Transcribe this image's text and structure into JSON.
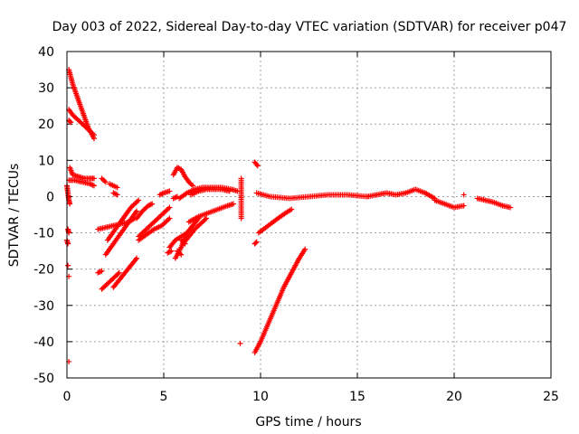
{
  "chart_data": {
    "type": "scatter",
    "title": "Day 003 of 2022, Sidereal Day-to-day VTEC variation (SDTVAR) for receiver p047",
    "xlabel": "GPS time / hours",
    "ylabel": "SDTVAR / TECUs",
    "xlim": [
      0,
      25
    ],
    "ylim": [
      -50,
      40
    ],
    "xticks": [
      0,
      5,
      10,
      15,
      20,
      25
    ],
    "yticks": [
      -50,
      -40,
      -30,
      -20,
      -10,
      0,
      10,
      20,
      30,
      40
    ],
    "xtick_labels": [
      "0",
      "5",
      "10",
      "15",
      "20",
      "25"
    ],
    "ytick_labels": [
      "-50",
      "-40",
      "-30",
      "-20",
      "-10",
      "0",
      "10",
      "20",
      "30",
      "40"
    ],
    "grid": true,
    "marker": "plus",
    "color": "#ff0000",
    "series": [
      {
        "name": "p047",
        "segments": [
          {
            "x": [
              0.1,
              0.3,
              0.5,
              0.7,
              0.9,
              1.1,
              1.4
            ],
            "y": [
              35,
              31,
              28,
              25,
              22,
              19,
              16
            ]
          },
          {
            "x": [
              0.1,
              0.3,
              0.6,
              0.9,
              1.2,
              1.4
            ],
            "y": [
              24,
              22.5,
              21,
              19.5,
              18,
              17
            ]
          },
          {
            "x": [
              0.1,
              0.2
            ],
            "y": [
              21,
              20.5
            ]
          },
          {
            "x": [
              0.15,
              0.3,
              0.6,
              0.9,
              1.2,
              1.4
            ],
            "y": [
              8,
              6,
              5.5,
              5,
              5,
              5
            ]
          },
          {
            "x": [
              0.1,
              0.4,
              0.8,
              1.2,
              1.4
            ],
            "y": [
              4.5,
              4.5,
              4,
              3.5,
              3
            ]
          },
          {
            "x": [
              1.8,
              2.0
            ],
            "y": [
              5,
              4
            ]
          },
          {
            "x": [
              2.2,
              2.6
            ],
            "y": [
              3.5,
              2.5
            ]
          },
          {
            "x": [
              2.4,
              2.6
            ],
            "y": [
              1,
              0.5
            ]
          },
          {
            "x": [
              0,
              0.05,
              0.1,
              0.15
            ],
            "y": [
              3,
              1,
              -1,
              -2
            ]
          },
          {
            "x": [
              1.6,
              2.0,
              2.4,
              2.8,
              3.2,
              3.5
            ],
            "y": [
              -9,
              -8.5,
              -8,
              -7.5,
              -7,
              -6
            ]
          },
          {
            "x": [
              2.1,
              2.5,
              2.9,
              3.3,
              3.7
            ],
            "y": [
              -12,
              -9,
              -6,
              -3,
              -1
            ]
          },
          {
            "x": [
              2.0,
              2.4,
              2.8,
              3.2,
              3.6
            ],
            "y": [
              -16,
              -13,
              -10,
              -7,
              -4
            ]
          },
          {
            "x": [
              1.6,
              1.8
            ],
            "y": [
              -21,
              -20.5
            ]
          },
          {
            "x": [
              1.8,
              2.1,
              2.4,
              2.7
            ],
            "y": [
              -25.5,
              -24,
              -22.5,
              -21
            ]
          },
          {
            "x": [
              2.4,
              2.7,
              3.0,
              3.3,
              3.6
            ],
            "y": [
              -25,
              -23,
              -21,
              -19,
              -17
            ]
          },
          {
            "x": [
              3.6,
              3.9,
              4.2,
              4.4
            ],
            "y": [
              -6,
              -4,
              -2.5,
              -2
            ]
          },
          {
            "x": [
              3.7,
              4.1,
              4.5,
              4.9,
              5.3
            ],
            "y": [
              -11,
              -9,
              -7,
              -5,
              -3
            ]
          },
          {
            "x": [
              3.7,
              4.1,
              4.5,
              4.9,
              5.3
            ],
            "y": [
              -12,
              -10.5,
              -9,
              -8,
              -6
            ]
          },
          {
            "x": [
              4.8,
              5.0,
              5.3
            ],
            "y": [
              0.5,
              1,
              1.5
            ]
          },
          {
            "x": [
              5.3,
              5.6,
              5.9,
              6.2
            ],
            "y": [
              -14,
              -12,
              -11,
              -10
            ]
          },
          {
            "x": [
              5.2,
              5.4
            ],
            "y": [
              -15.5,
              -15
            ]
          },
          {
            "x": [
              5.5,
              5.7
            ],
            "y": [
              -0.5,
              0
            ]
          },
          {
            "x": [
              5.6,
              5.9,
              6.2,
              6.5,
              6.8
            ],
            "y": [
              -17,
              -14,
              -10,
              -8,
              -6
            ]
          },
          {
            "x": [
              6.0,
              6.3,
              6.6,
              6.9,
              7.2
            ],
            "y": [
              -13,
              -11,
              -9,
              -7.5,
              -6
            ]
          },
          {
            "x": [
              6.3,
              6.8,
              7.3,
              7.8,
              8.3,
              8.6
            ],
            "y": [
              -7,
              -5.5,
              -4.5,
              -3.5,
              -2.5,
              -2
            ]
          },
          {
            "x": [
              5.5,
              5.7,
              5.9,
              6.1,
              6.3,
              6.5
            ],
            "y": [
              6,
              8,
              7.5,
              5.5,
              4,
              3
            ]
          },
          {
            "x": [
              5.8,
              6.2,
              6.6,
              7.0,
              7.5,
              8.0,
              8.5,
              8.8
            ],
            "y": [
              -0.5,
              1,
              2,
              2.5,
              2.5,
              2.5,
              2,
              1.5
            ]
          },
          {
            "x": [
              6.4,
              6.8,
              7.2,
              7.6,
              8.0,
              8.4
            ],
            "y": [
              0.5,
              1.5,
              2,
              2,
              2,
              1.5
            ]
          },
          {
            "x": [
              5.7,
              5.9
            ],
            "y": [
              -15,
              -16
            ]
          },
          {
            "x": [
              5.9,
              6.1
            ],
            "y": [
              -12,
              -13
            ]
          },
          {
            "x": [
              9.0,
              9.0
            ],
            "y": [
              5,
              -6
            ]
          },
          {
            "x": [
              8.95
            ],
            "y": [
              -40.5
            ]
          },
          {
            "x": [
              9.7,
              9.85
            ],
            "y": [
              9.5,
              8.5
            ]
          },
          {
            "x": [
              9.7,
              9.8
            ],
            "y": [
              -13,
              -12.5
            ]
          },
          {
            "x": [
              9.9,
              10.4,
              10.9,
              11.3,
              11.6
            ],
            "y": [
              -10,
              -8,
              -6,
              -4.5,
              -3.5
            ]
          },
          {
            "x": [
              9.7,
              10.0,
              10.4,
              10.8,
              11.2,
              11.6,
              12.0,
              12.3
            ],
            "y": [
              -43,
              -40,
              -35,
              -30,
              -25,
              -21,
              -17,
              -14.5
            ]
          },
          {
            "x": [
              9.8,
              10.5,
              11.5,
              12.5,
              13.5,
              14.5,
              15.5
            ],
            "y": [
              1,
              0,
              -0.5,
              0,
              0.5,
              0.5,
              0
            ]
          },
          {
            "x": [
              15.5,
              16.0,
              16.5,
              17.0,
              17.5,
              18.0,
              18.5,
              19.0
            ],
            "y": [
              0,
              0.5,
              1,
              0.5,
              1,
              2,
              1,
              -0.5
            ]
          },
          {
            "x": [
              19.0,
              19.5,
              20.0,
              20.5
            ],
            "y": [
              -1,
              -2,
              -3,
              -2.5
            ]
          },
          {
            "x": [
              20.5
            ],
            "y": [
              0.5
            ]
          },
          {
            "x": [
              21.2,
              21.6,
              22.0,
              22.5,
              22.9
            ],
            "y": [
              -0.5,
              -1,
              -1.5,
              -2.5,
              -3
            ]
          },
          {
            "x": [
              0.0,
              0.05
            ],
            "y": [
              -12,
              -13
            ]
          },
          {
            "x": [
              0.05,
              0.1
            ],
            "y": [
              -9,
              -10
            ]
          },
          {
            "x": [
              0.05
            ],
            "y": [
              -19
            ]
          },
          {
            "x": [
              0.1
            ],
            "y": [
              -22
            ]
          },
          {
            "x": [
              0.1
            ],
            "y": [
              -45.5
            ]
          }
        ]
      }
    ]
  }
}
